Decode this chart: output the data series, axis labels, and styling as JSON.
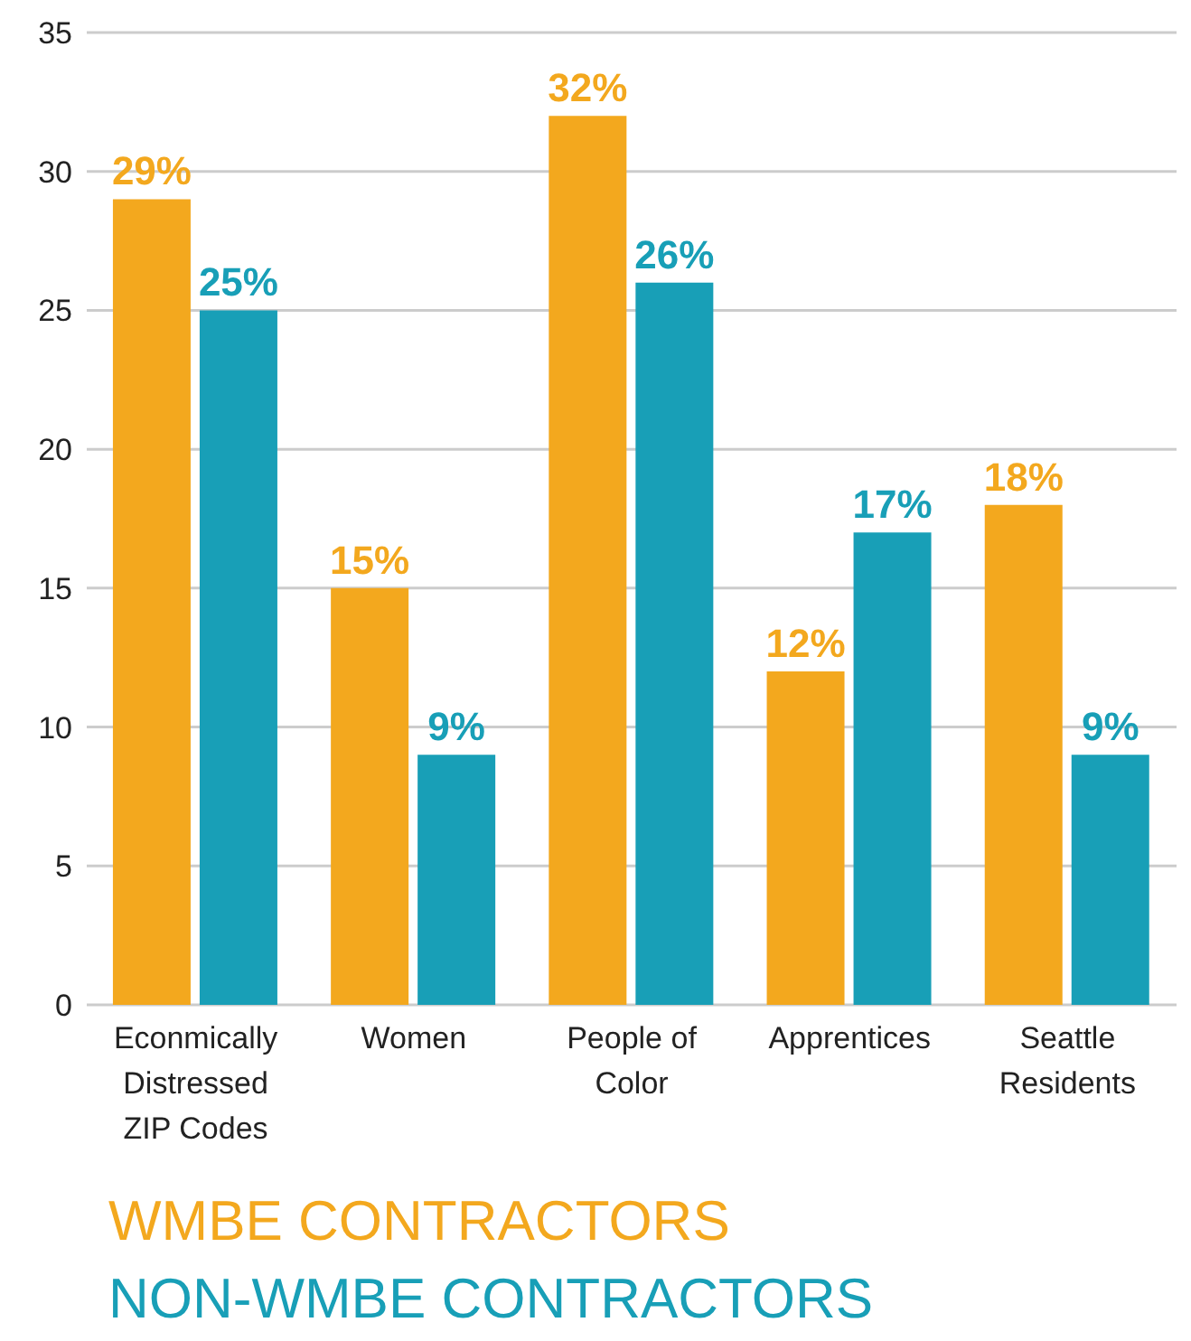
{
  "chart_data": {
    "type": "bar",
    "categories": [
      "Econmically Distressed ZIP Codes",
      "Women",
      "People of Color",
      "Apprentices",
      "Seattle Residents"
    ],
    "series": [
      {
        "name": "WMBE CONTRACTORS",
        "color": "#f3a81e",
        "values": [
          29,
          15,
          32,
          12,
          18
        ],
        "value_labels": [
          "29%",
          "15%",
          "32%",
          "12%",
          "18%"
        ]
      },
      {
        "name": "NON-WMBE CONTRACTORS",
        "color": "#189fb7",
        "values": [
          25,
          9,
          26,
          17,
          9
        ],
        "value_labels": [
          "25%",
          "9%",
          "26%",
          "17%",
          "9%"
        ]
      }
    ],
    "ylim": [
      0,
      35
    ],
    "yticks": [
      0,
      5,
      10,
      15,
      20,
      25,
      30,
      35
    ],
    "grid": "y",
    "legend": "bottom"
  }
}
